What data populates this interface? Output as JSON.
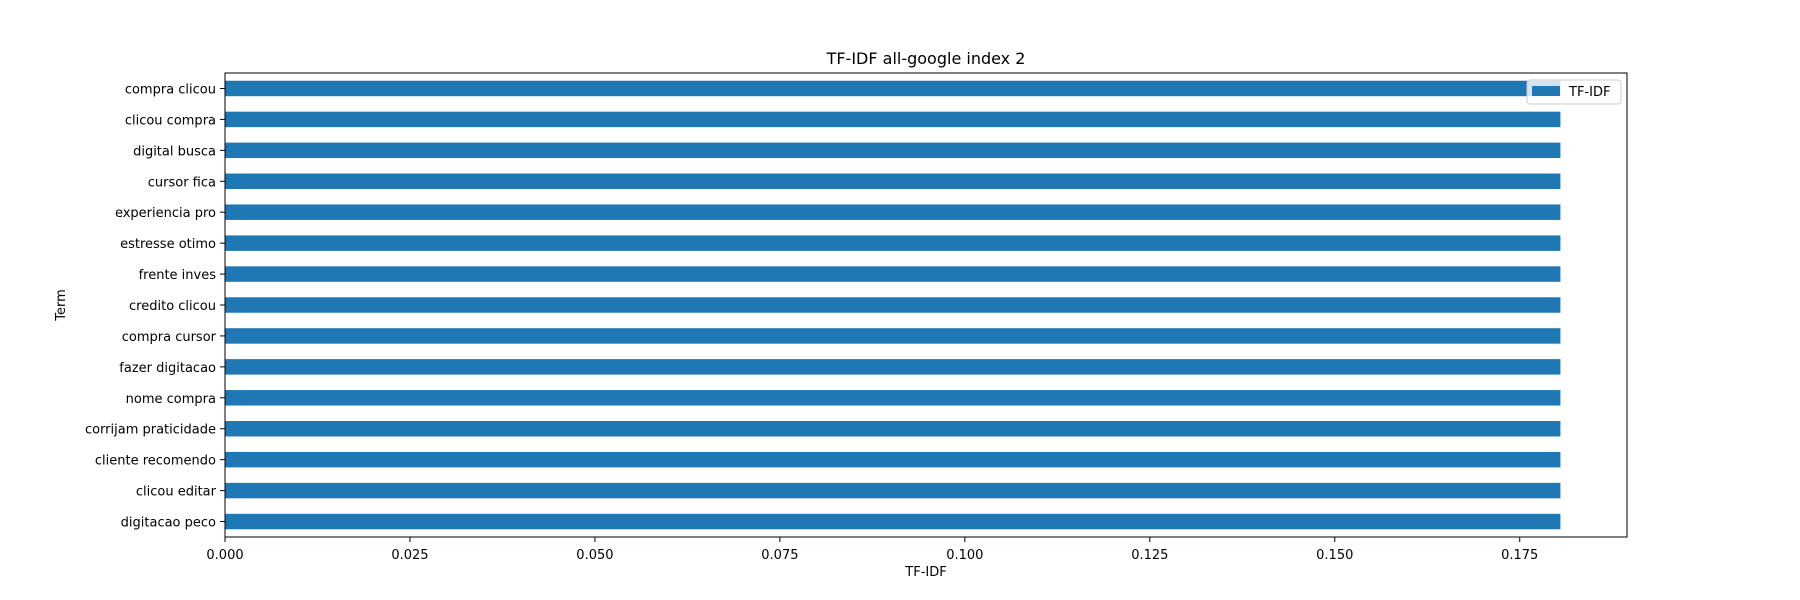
{
  "chart_data": {
    "type": "bar",
    "orientation": "horizontal",
    "title": "TF-IDF all-google index 2",
    "xlabel": "TF-IDF",
    "ylabel": "Term",
    "xlim": [
      0,
      0.1895
    ],
    "xticks": [
      "0.000",
      "0.025",
      "0.050",
      "0.075",
      "0.100",
      "0.125",
      "0.150",
      "0.175"
    ],
    "legend": {
      "position": "top-right"
    },
    "grid": false,
    "bar_color": "#1f77b4",
    "categories": [
      "compra clicou",
      "clicou compra",
      "digital busca",
      "cursor fica",
      "experiencia pro",
      "estresse otimo",
      "frente inves",
      "credito clicou",
      "compra cursor",
      "fazer digitacao",
      "nome compra",
      "corrijam praticidade",
      "cliente recomendo",
      "clicou editar",
      "digitacao peco"
    ],
    "series": [
      {
        "name": "TF-IDF",
        "values": [
          0.1805,
          0.1805,
          0.1805,
          0.1805,
          0.1805,
          0.1805,
          0.1805,
          0.1805,
          0.1805,
          0.1805,
          0.1805,
          0.1805,
          0.1805,
          0.1805,
          0.1805
        ]
      }
    ]
  }
}
